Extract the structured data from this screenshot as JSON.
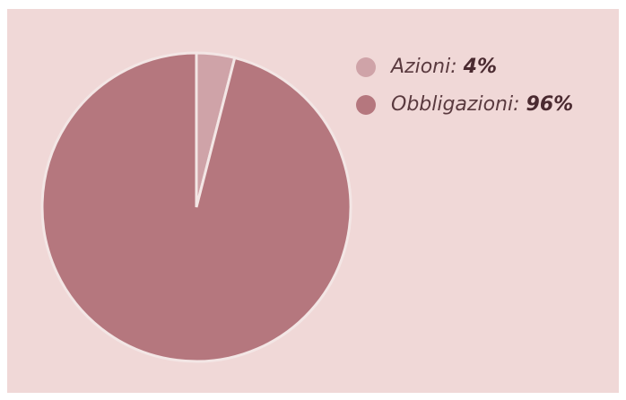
{
  "chart_data": {
    "type": "pie",
    "categories": [
      "Azioni:",
      "Obbligazioni:"
    ],
    "values": [
      4,
      96
    ],
    "value_labels": [
      "4%",
      "96%"
    ],
    "colors": [
      "#cfa3a8",
      "#b5777e"
    ],
    "legend": "top-right"
  }
}
